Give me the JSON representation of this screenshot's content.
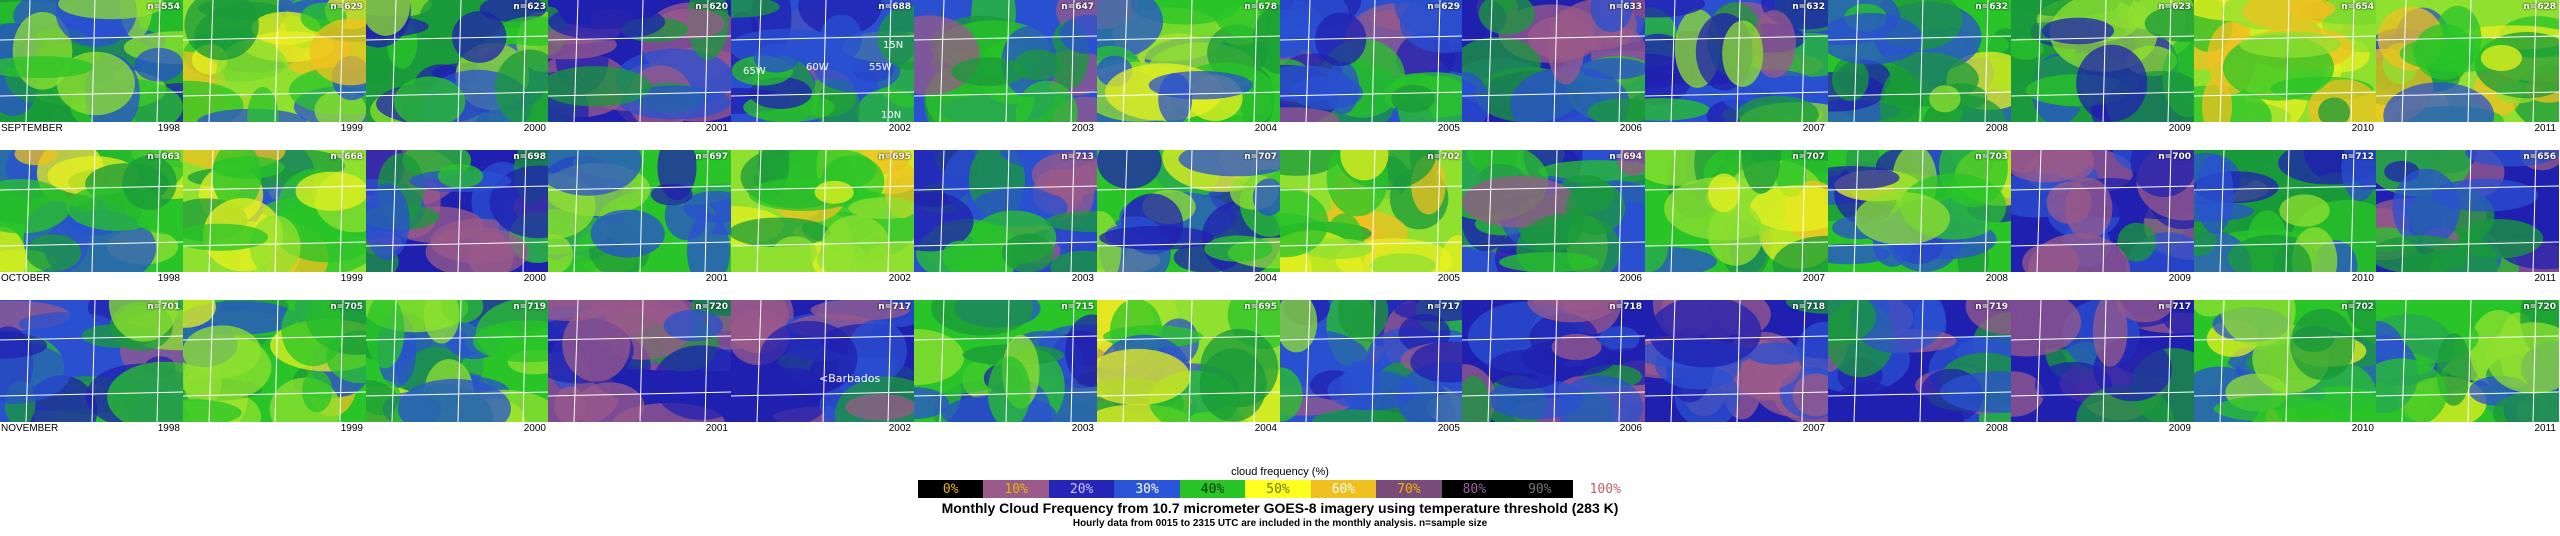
{
  "rows": [
    {
      "month": "SEPTEMBER",
      "panels": [
        {
          "year": "1998",
          "n": "n=554",
          "level": 0.35
        },
        {
          "year": "1999",
          "n": "n=629",
          "level": 0.5
        },
        {
          "year": "2000",
          "n": "n=623",
          "level": 0.35
        },
        {
          "year": "2001",
          "n": "n=620",
          "level": 0.2
        },
        {
          "year": "2002",
          "n": "n=688",
          "level": 0.3
        },
        {
          "year": "2003",
          "n": "n=647",
          "level": 0.25
        },
        {
          "year": "2004",
          "n": "n=678",
          "level": 0.45
        },
        {
          "year": "2005",
          "n": "n=629",
          "level": 0.3
        },
        {
          "year": "2006",
          "n": "n=633",
          "level": 0.2
        },
        {
          "year": "2007",
          "n": "n=632",
          "level": 0.3
        },
        {
          "year": "2008",
          "n": "n=632",
          "level": 0.4
        },
        {
          "year": "2009",
          "n": "n=623",
          "level": 0.35
        },
        {
          "year": "2010",
          "n": "n=654",
          "level": 0.55
        },
        {
          "year": "2011",
          "n": "n=628",
          "level": 0.5
        }
      ]
    },
    {
      "month": "OCTOBER",
      "panels": [
        {
          "year": "1998",
          "n": "n=663",
          "level": 0.45
        },
        {
          "year": "1999",
          "n": "n=668",
          "level": 0.5
        },
        {
          "year": "2000",
          "n": "n=698",
          "level": 0.2
        },
        {
          "year": "2001",
          "n": "n=697",
          "level": 0.4
        },
        {
          "year": "2002",
          "n": "n=695",
          "level": 0.55
        },
        {
          "year": "2003",
          "n": "n=713",
          "level": 0.25
        },
        {
          "year": "2004",
          "n": "n=707",
          "level": 0.4
        },
        {
          "year": "2005",
          "n": "n=702",
          "level": 0.55
        },
        {
          "year": "2006",
          "n": "n=694",
          "level": 0.3
        },
        {
          "year": "2007",
          "n": "n=707",
          "level": 0.45
        },
        {
          "year": "2008",
          "n": "n=703",
          "level": 0.4
        },
        {
          "year": "2009",
          "n": "n=700",
          "level": 0.2
        },
        {
          "year": "2010",
          "n": "n=712",
          "level": 0.35
        },
        {
          "year": "2011",
          "n": "n=656",
          "level": 0.2
        }
      ]
    },
    {
      "month": "NOVEMBER",
      "panels": [
        {
          "year": "1998",
          "n": "n=701",
          "level": 0.3
        },
        {
          "year": "1999",
          "n": "n=705",
          "level": 0.45
        },
        {
          "year": "2000",
          "n": "n=719",
          "level": 0.4
        },
        {
          "year": "2001",
          "n": "n=720",
          "level": 0.15
        },
        {
          "year": "2002",
          "n": "n=717",
          "level": 0.15
        },
        {
          "year": "2003",
          "n": "n=715",
          "level": 0.4
        },
        {
          "year": "2004",
          "n": "n=695",
          "level": 0.5
        },
        {
          "year": "2005",
          "n": "n=717",
          "level": 0.3
        },
        {
          "year": "2006",
          "n": "n=718",
          "level": 0.15
        },
        {
          "year": "2007",
          "n": "n=718",
          "level": 0.15
        },
        {
          "year": "2008",
          "n": "n=719",
          "level": 0.2
        },
        {
          "year": "2009",
          "n": "n=717",
          "level": 0.2
        },
        {
          "year": "2010",
          "n": "n=702",
          "level": 0.45
        },
        {
          "year": "2011",
          "n": "n=720",
          "level": 0.4
        }
      ]
    }
  ],
  "annotations": {
    "lat_top": "15N",
    "lat_bottom": "10N",
    "lon_left": "65W",
    "lon_mid": "60W",
    "lon_right": "55W",
    "barbados": "<Barbados"
  },
  "legend": {
    "title": "cloud frequency (%)",
    "levels": [
      {
        "label": "0%",
        "color": "#000000",
        "text_color": "#e8b800"
      },
      {
        "label": "10%",
        "color": "#9a5a8a",
        "text_color": "#e8b800"
      },
      {
        "label": "20%",
        "color": "#2525b8",
        "text_color": "#c8c8ff"
      },
      {
        "label": "30%",
        "color": "#2a55d8",
        "text_color": "#ffffff"
      },
      {
        "label": "40%",
        "color": "#28c428",
        "text_color": "#003300"
      },
      {
        "label": "50%",
        "color": "#ffff20",
        "text_color": "#777700"
      },
      {
        "label": "60%",
        "color": "#f0c020",
        "text_color": "#ffffff"
      },
      {
        "label": "70%",
        "color": "#7a4a7a",
        "text_color": "#e8b800"
      },
      {
        "label": "80%",
        "color": "#000000",
        "text_color": "#a060a0"
      },
      {
        "label": "90%",
        "color": "#000000",
        "text_color": "#777777"
      },
      {
        "label": "100%",
        "color": "#ffffff",
        "text_color": "#c06060"
      }
    ]
  },
  "title": "Monthly Cloud Frequency from 10.7 micrometer GOES-8 imagery using temperature threshold (283 K)",
  "subtitle": "Hourly data from 0015 to 2315 UTC are included in the monthly analysis.  n=sample size"
}
